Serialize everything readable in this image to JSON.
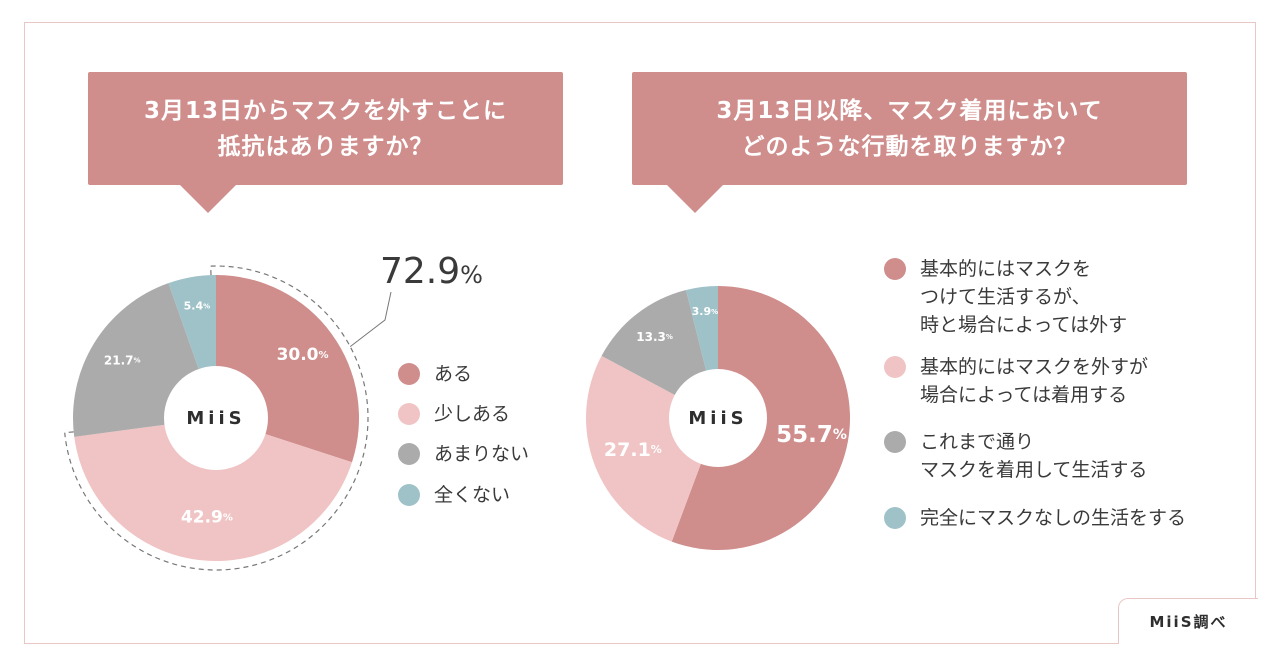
{
  "credit": "MiiS調べ",
  "colors": {
    "accent": "#cf8d8c",
    "light_pink": "#f0c4c4",
    "gray": "#ababab",
    "teal": "#9fc2c8"
  },
  "chart_data": [
    {
      "type": "pie",
      "title_lines": [
        "3月13日からマスクを外すことに",
        "抵抗はありますか？"
      ],
      "center_label": "MiiS",
      "callout": "72.9%",
      "slices": [
        {
          "label": "ある",
          "value": 30.0,
          "display": "30.0%",
          "color": "#cf8d8c"
        },
        {
          "label": "少しある",
          "value": 42.9,
          "display": "42.9%",
          "color": "#f0c4c4"
        },
        {
          "label": "あまりない",
          "value": 21.7,
          "display": "21.7%",
          "color": "#ababab"
        },
        {
          "label": "全くない",
          "value": 5.4,
          "display": "5.4%",
          "color": "#9fc2c8"
        }
      ]
    },
    {
      "type": "pie",
      "title_lines": [
        "3月13日以降、マスク着用において",
        "どのような行動を取りますか？"
      ],
      "center_label": "MiiS",
      "slices": [
        {
          "label": "基本的にはマスクをつけて生活するが、時と場合によっては外す",
          "legend_lines": [
            "基本的にはマスクを",
            "つけて生活するが、",
            "時と場合によっては外す"
          ],
          "value": 55.7,
          "display": "55.7%",
          "color": "#cf8d8c"
        },
        {
          "label": "基本的にはマスクを外すが場合によっては着用する",
          "legend_lines": [
            "基本的にはマスクを外すが",
            "場合によっては着用する"
          ],
          "value": 27.1,
          "display": "27.1%",
          "color": "#f0c4c4"
        },
        {
          "label": "これまで通りマスクを着用して生活する",
          "legend_lines": [
            "これまで通り",
            "マスクを着用して生活する"
          ],
          "value": 13.3,
          "display": "13.3%",
          "color": "#ababab"
        },
        {
          "label": "完全にマスクなしの生活をする",
          "legend_lines": [
            "完全にマスクなしの生活をする"
          ],
          "value": 3.9,
          "display": "3.9%",
          "color": "#9fc2c8"
        }
      ]
    }
  ]
}
